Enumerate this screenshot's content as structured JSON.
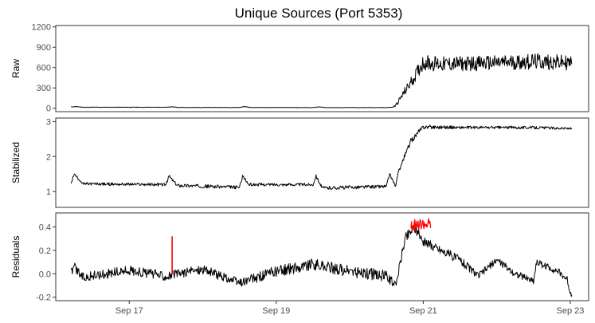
{
  "chart_data": {
    "type": "line",
    "title": "Unique Sources (Port 5353)",
    "xlabel": "",
    "x_range": [
      "2016-09-16T00:00",
      "2016-09-23T06:00"
    ],
    "x_ticks": [
      {
        "label": "Sep 17",
        "t": "2016-09-17T00:00"
      },
      {
        "label": "Sep 19",
        "t": "2016-09-19T00:00"
      },
      {
        "label": "Sep 21",
        "t": "2016-09-21T00:00"
      },
      {
        "label": "Sep 23",
        "t": "2016-09-23T00:00"
      }
    ],
    "colors": {
      "line": "#000000",
      "anomaly": "#ff0000",
      "axis": "#333333",
      "tick": "#4d4d4d"
    },
    "panels": [
      {
        "ylabel": "Raw",
        "ylim": [
          -50,
          1220
        ],
        "yticks": [
          "0",
          "300",
          "600",
          "900",
          "1200"
        ],
        "ytick_values": [
          0,
          300,
          600,
          900,
          1200
        ],
        "series": [
          {
            "t": "2016-09-16T05:00",
            "v": 20,
            "noise": 3
          },
          {
            "t": "2016-09-16T06:30",
            "v": 25,
            "noise": 3
          },
          {
            "t": "2016-09-16T09:00",
            "v": 15,
            "noise": 3
          },
          {
            "t": "2016-09-17T12:00",
            "v": 15,
            "noise": 3
          },
          {
            "t": "2016-09-17T14:00",
            "v": 22,
            "noise": 3
          },
          {
            "t": "2016-09-17T16:00",
            "v": 12,
            "noise": 3
          },
          {
            "t": "2016-09-18T12:00",
            "v": 12,
            "noise": 3
          },
          {
            "t": "2016-09-18T13:30",
            "v": 25,
            "noise": 3
          },
          {
            "t": "2016-09-18T15:30",
            "v": 12,
            "noise": 3
          },
          {
            "t": "2016-09-19T12:00",
            "v": 10,
            "noise": 3
          },
          {
            "t": "2016-09-19T14:00",
            "v": 20,
            "noise": 3
          },
          {
            "t": "2016-09-19T16:00",
            "v": 10,
            "noise": 3
          },
          {
            "t": "2016-09-20T12:00",
            "v": 10,
            "noise": 3
          },
          {
            "t": "2016-09-20T14:00",
            "v": 15,
            "noise": 3
          },
          {
            "t": "2016-09-20T15:00",
            "v": 40,
            "noise": 20
          },
          {
            "t": "2016-09-20T18:00",
            "v": 250,
            "noise": 60
          },
          {
            "t": "2016-09-20T21:00",
            "v": 450,
            "noise": 90
          },
          {
            "t": "2016-09-21T00:00",
            "v": 680,
            "noise": 120
          },
          {
            "t": "2016-09-21T06:00",
            "v": 650,
            "noise": 110
          },
          {
            "t": "2016-09-22T00:00",
            "v": 670,
            "noise": 110
          },
          {
            "t": "2016-09-22T12:00",
            "v": 690,
            "noise": 120
          },
          {
            "t": "2016-09-23T00:00",
            "v": 670,
            "noise": 110
          },
          {
            "t": "2016-09-23T00:30",
            "v": 650,
            "noise": 100
          }
        ]
      },
      {
        "ylabel": "Stabilized",
        "ylim": [
          0.55,
          3.1
        ],
        "yticks": [
          "1",
          "2",
          "3"
        ],
        "ytick_values": [
          1,
          2,
          3
        ],
        "series": [
          {
            "t": "2016-09-16T05:00",
            "v": 1.25,
            "noise": 0.03
          },
          {
            "t": "2016-09-16T06:00",
            "v": 1.5,
            "noise": 0.03
          },
          {
            "t": "2016-09-16T09:00",
            "v": 1.22,
            "noise": 0.04
          },
          {
            "t": "2016-09-17T12:00",
            "v": 1.2,
            "noise": 0.04
          },
          {
            "t": "2016-09-17T13:00",
            "v": 1.45,
            "noise": 0.04
          },
          {
            "t": "2016-09-17T15:30",
            "v": 1.18,
            "noise": 0.05
          },
          {
            "t": "2016-09-18T12:00",
            "v": 1.12,
            "noise": 0.05
          },
          {
            "t": "2016-09-18T13:00",
            "v": 1.45,
            "noise": 0.04
          },
          {
            "t": "2016-09-18T15:00",
            "v": 1.2,
            "noise": 0.04
          },
          {
            "t": "2016-09-19T12:00",
            "v": 1.2,
            "noise": 0.04
          },
          {
            "t": "2016-09-19T13:00",
            "v": 1.45,
            "noise": 0.04
          },
          {
            "t": "2016-09-19T15:00",
            "v": 1.1,
            "noise": 0.05
          },
          {
            "t": "2016-09-20T12:00",
            "v": 1.15,
            "noise": 0.05
          },
          {
            "t": "2016-09-20T13:00",
            "v": 1.5,
            "noise": 0.04
          },
          {
            "t": "2016-09-20T15:00",
            "v": 1.15,
            "noise": 0.04
          },
          {
            "t": "2016-09-20T16:00",
            "v": 1.6,
            "noise": 0.06
          },
          {
            "t": "2016-09-20T20:00",
            "v": 2.45,
            "noise": 0.08
          },
          {
            "t": "2016-09-21T00:00",
            "v": 2.85,
            "noise": 0.06
          },
          {
            "t": "2016-09-21T12:00",
            "v": 2.83,
            "noise": 0.04
          },
          {
            "t": "2016-09-22T12:00",
            "v": 2.83,
            "noise": 0.04
          },
          {
            "t": "2016-09-23T00:30",
            "v": 2.8,
            "noise": 0.03
          }
        ]
      },
      {
        "ylabel": "Residuals",
        "ylim": [
          -0.23,
          0.52
        ],
        "yticks": [
          "-0.2",
          "0.0",
          "0.2",
          "0.4"
        ],
        "ytick_values": [
          -0.2,
          0.0,
          0.2,
          0.4
        ],
        "series": [
          {
            "t": "2016-09-16T05:00",
            "v": 0.0,
            "noise": 0.05
          },
          {
            "t": "2016-09-16T06:00",
            "v": 0.05,
            "noise": 0.05
          },
          {
            "t": "2016-09-16T09:00",
            "v": -0.03,
            "noise": 0.04
          },
          {
            "t": "2016-09-17T00:00",
            "v": 0.03,
            "noise": 0.04
          },
          {
            "t": "2016-09-17T12:00",
            "v": -0.02,
            "noise": 0.04
          },
          {
            "t": "2016-09-18T00:00",
            "v": 0.04,
            "noise": 0.04
          },
          {
            "t": "2016-09-18T12:00",
            "v": -0.08,
            "noise": 0.04
          },
          {
            "t": "2016-09-19T00:00",
            "v": 0.02,
            "noise": 0.05
          },
          {
            "t": "2016-09-19T12:00",
            "v": 0.08,
            "noise": 0.05
          },
          {
            "t": "2016-09-20T00:00",
            "v": 0.02,
            "noise": 0.05
          },
          {
            "t": "2016-09-20T12:00",
            "v": -0.02,
            "noise": 0.05
          },
          {
            "t": "2016-09-20T15:00",
            "v": -0.1,
            "noise": 0.03
          },
          {
            "t": "2016-09-20T18:00",
            "v": 0.3,
            "noise": 0.05
          },
          {
            "t": "2016-09-20T21:00",
            "v": 0.4,
            "noise": 0.04
          },
          {
            "t": "2016-09-21T00:00",
            "v": 0.28,
            "noise": 0.04
          },
          {
            "t": "2016-09-21T12:00",
            "v": 0.12,
            "noise": 0.04
          },
          {
            "t": "2016-09-21T18:00",
            "v": -0.02,
            "noise": 0.03
          },
          {
            "t": "2016-09-22T00:00",
            "v": 0.12,
            "noise": 0.03
          },
          {
            "t": "2016-09-22T06:00",
            "v": 0.0,
            "noise": 0.03
          },
          {
            "t": "2016-09-22T12:00",
            "v": -0.06,
            "noise": 0.03
          },
          {
            "t": "2016-09-22T13:00",
            "v": 0.1,
            "noise": 0.03
          },
          {
            "t": "2016-09-22T20:00",
            "v": 0.02,
            "noise": 0.03
          },
          {
            "t": "2016-09-22T23:00",
            "v": -0.05,
            "noise": 0.03
          },
          {
            "t": "2016-09-23T00:00",
            "v": -0.16,
            "noise": 0.03
          },
          {
            "t": "2016-09-23T00:30",
            "v": -0.18,
            "noise": 0.02
          }
        ],
        "anomalies": [
          {
            "t": "2016-09-17T14:00",
            "v_min": 0.0,
            "v_max": 0.32
          },
          {
            "t_start": "2016-09-20T20:00",
            "t_end": "2016-09-21T02:30",
            "v": 0.42,
            "noise": 0.05
          }
        ]
      }
    ]
  }
}
